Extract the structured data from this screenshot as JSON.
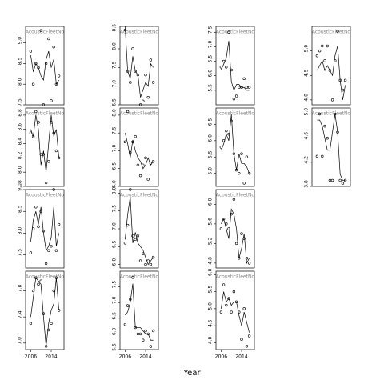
{
  "shared_x": {
    "label": "Year",
    "xlim": [
      2004,
      2019
    ],
    "xticks": [
      2006,
      2014
    ],
    "x": [
      2006,
      2007,
      2008,
      2009,
      2010,
      2011,
      2012,
      2013,
      2014,
      2015,
      2016,
      2017
    ]
  },
  "chart_data": [
    {
      "type": "line",
      "title": "AcousticFleetNo",
      "ylim": [
        7.5,
        9.4
      ],
      "yticks": [
        7.5,
        {
          "value": 8,
          "label": "8.0"
        },
        8.5,
        {
          "value": 9,
          "label": "9.0"
        }
      ],
      "series": [
        {
          "mark": "points",
          "values": [
            8.8,
            8.0,
            8.5,
            8.4,
            9.3,
            7.5,
            8.5,
            9.1,
            7.6,
            8.9,
            8.0,
            8.2
          ]
        },
        {
          "mark": "line",
          "values": [
            8.7,
            8.3,
            8.5,
            8.4,
            8.2,
            8.1,
            8.6,
            8.8,
            8.4,
            8.6,
            8.0,
            8.1
          ]
        }
      ]
    },
    {
      "type": "line",
      "title": "AcousticFleetNo",
      "ylim": [
        6.5,
        8.6
      ],
      "yticks": [
        6.5,
        {
          "value": 7,
          "label": "7.0"
        },
        7.5,
        {
          "value": 8,
          "label": "8.0"
        },
        8.5
      ],
      "series": [
        {
          "mark": "points",
          "values": [
            8.5,
            7.4,
            7.1,
            8.0,
            7.4,
            7.3,
            6.5,
            6.6,
            7.3,
            6.7,
            7.7,
            7.1
          ]
        },
        {
          "mark": "line",
          "values": [
            8.6,
            7.4,
            7.2,
            7.8,
            7.4,
            7.3,
            6.7,
            6.9,
            7.1,
            7.0,
            7.6,
            7.5
          ]
        }
      ]
    },
    {
      "type": "line",
      "title": "AcousticFleetNo",
      "ylim": [
        5.0,
        7.7
      ],
      "yticks": [
        5.5,
        {
          "value": 6,
          "label": "6.0"
        },
        6.5,
        {
          "value": 7,
          "label": "7.0"
        },
        7.5
      ],
      "series": [
        {
          "mark": "points",
          "values": [
            6.3,
            6.5,
            6.3,
            7.5,
            6.2,
            5.2,
            5.3,
            5.6,
            5.6,
            5.9,
            5.6,
            5.6
          ]
        },
        {
          "mark": "line",
          "values": [
            6.2,
            6.4,
            6.6,
            7.2,
            5.8,
            5.5,
            5.7,
            5.7,
            5.6,
            5.6,
            5.5,
            5.5
          ]
        }
      ]
    },
    {
      "type": "line",
      "title": "AcousticFleetNo",
      "ylim": [
        3.9,
        5.5
      ],
      "yticks": [
        {
          "value": 4,
          "label": "4.0"
        },
        4.5,
        {
          "value": 5,
          "label": "5.0"
        }
      ],
      "series": [
        {
          "mark": "points",
          "values": [
            4.9,
            5.0,
            5.1,
            4.8,
            5.1,
            4.6,
            4.0,
            4.8,
            5.4,
            4.4,
            4.2,
            4.4
          ]
        },
        {
          "mark": "line",
          "values": [
            4.6,
            4.7,
            4.8,
            4.6,
            4.7,
            4.6,
            4.5,
            4.9,
            5.1,
            4.4,
            4.0,
            4.3
          ]
        }
      ]
    },
    {
      "type": "line",
      "title": "AcousticFleetNo",
      "ylim": [
        7.8,
        8.9
      ],
      "yticks": [
        7.8,
        {
          "value": 8,
          "label": "8.0"
        },
        8.2,
        8.4,
        8.6,
        8.8
      ],
      "series": [
        {
          "mark": "points",
          "values": [
            8.55,
            8.5,
            8.85,
            8.7,
            8.25,
            8.25,
            7.85,
            8.15,
            8.7,
            8.55,
            8.3,
            8.2
          ]
        },
        {
          "mark": "line",
          "values": [
            8.6,
            8.5,
            8.8,
            8.6,
            8.1,
            8.3,
            8.0,
            8.4,
            8.8,
            8.5,
            8.6,
            8.2
          ]
        }
      ]
    },
    {
      "type": "line",
      "title": "AcousticFleetNo",
      "ylim": [
        6.0,
        8.2
      ],
      "yticks": [
        {
          "value": 6,
          "label": "6.0"
        },
        6.5,
        {
          "value": 7,
          "label": "7.0"
        },
        7.5,
        {
          "value": 8,
          "label": "8.0"
        }
      ],
      "series": [
        {
          "mark": "points",
          "values": [
            7.25,
            8.1,
            6.95,
            7.25,
            7.4,
            6.6,
            6.3,
            6.6,
            6.8,
            6.2,
            6.65,
            6.7
          ]
        },
        {
          "mark": "line",
          "values": [
            7.5,
            7.2,
            6.8,
            7.3,
            7.0,
            6.8,
            6.7,
            6.5,
            6.6,
            6.8,
            6.6,
            6.7
          ]
        }
      ]
    },
    {
      "type": "line",
      "title": "AcousticFleetNo",
      "ylim": [
        4.6,
        7.0
      ],
      "yticks": [
        {
          "value": 5,
          "label": "5.0"
        },
        5.5,
        {
          "value": 6,
          "label": "6.0"
        },
        6.5
      ],
      "series": [
        {
          "mark": "points",
          "values": [
            5.8,
            6.0,
            6.3,
            6.2,
            6.6,
            5.6,
            5.1,
            5.0,
            5.6,
            4.7,
            5.5,
            5.0
          ]
        },
        {
          "mark": "line",
          "values": [
            5.7,
            5.9,
            6.2,
            6.0,
            6.8,
            5.6,
            5.1,
            5.6,
            5.3,
            5.3,
            5.2,
            5.0
          ]
        }
      ]
    },
    {
      "type": "line",
      "title": "AcousticFleetNo",
      "ylim": [
        3.8,
        5.1
      ],
      "yticks": [
        3.8,
        4.2,
        4.6,
        {
          "value": 5,
          "label": "5.0"
        }
      ],
      "series": [
        {
          "mark": "points",
          "values": [
            4.3,
            5.0,
            4.3,
            4.8,
            4.6,
            3.9,
            3.9,
            5.0,
            4.7,
            3.9,
            3.85,
            3.9
          ]
        },
        {
          "mark": "line",
          "values": [
            4.9,
            4.9,
            4.8,
            4.6,
            4.4,
            4.4,
            4.7,
            5.0,
            4.7,
            4.0,
            3.9,
            3.9
          ]
        }
      ]
    },
    {
      "type": "line",
      "title": "AcousticFleetNo",
      "ylim": [
        7.2,
        9.0
      ],
      "yticks": [
        7.5,
        {
          "value": 8,
          "label": "8.0"
        },
        8.5,
        {
          "value": 9,
          "label": "9.0"
        }
      ],
      "series": [
        {
          "mark": "points",
          "values": [
            7.55,
            8.1,
            8.6,
            8.15,
            8.5,
            8.05,
            7.3,
            7.6,
            7.7,
            9.0,
            7.6,
            8.2
          ]
        },
        {
          "mark": "line",
          "values": [
            7.8,
            8.3,
            8.5,
            8.2,
            8.6,
            8.0,
            7.6,
            7.7,
            7.9,
            8.6,
            7.7,
            8.0
          ]
        }
      ]
    },
    {
      "type": "line",
      "title": "AcousticFleetNo",
      "ylim": [
        5.9,
        8.1
      ],
      "yticks": [
        {
          "value": 6,
          "label": "6.0"
        },
        6.5,
        {
          "value": 7,
          "label": "7.0"
        },
        7.5,
        {
          "value": 8,
          "label": "8.0"
        }
      ],
      "series": [
        {
          "mark": "points",
          "values": [
            6.6,
            7.1,
            8.1,
            6.8,
            6.7,
            6.8,
            6.1,
            6.3,
            6.0,
            6.1,
            6.0,
            6.2
          ]
        },
        {
          "mark": "line",
          "values": [
            6.7,
            7.4,
            7.9,
            6.6,
            6.9,
            6.6,
            6.5,
            6.4,
            6.2,
            6.0,
            6.1,
            6.2
          ]
        }
      ]
    },
    {
      "type": "line",
      "title": "AcousticFleetNo",
      "ylim": [
        4.7,
        6.3
      ],
      "yticks": [
        4.8,
        5.2,
        5.6,
        {
          "value": 6,
          "label": "6.0"
        }
      ],
      "series": [
        {
          "mark": "points",
          "values": [
            5.5,
            5.7,
            5.6,
            5.5,
            5.8,
            6.1,
            5.2,
            4.9,
            5.4,
            5.3,
            4.9,
            4.8
          ]
        },
        {
          "mark": "line",
          "values": [
            5.6,
            5.7,
            5.5,
            5.3,
            5.9,
            5.8,
            5.5,
            4.9,
            5.1,
            5.4,
            4.8,
            4.9
          ]
        }
      ]
    },
    {
      "type": "line",
      "title": "AcousticFleetNo",
      "ylim": [
        6.9,
        8.1
      ],
      "yticks": [
        {
          "value": 7,
          "label": "7.0"
        },
        7.4,
        7.8
      ],
      "series": [
        {
          "mark": "points",
          "values": [
            7.3,
            7.8,
            8.0,
            7.9,
            7.95,
            7.45,
            6.95,
            7.2,
            7.3,
            7.8,
            8.0,
            7.5
          ]
        },
        {
          "mark": "line",
          "values": [
            7.4,
            7.7,
            8.0,
            7.95,
            7.9,
            7.4,
            6.95,
            7.3,
            7.5,
            7.6,
            8.0,
            7.5
          ]
        }
      ]
    },
    {
      "type": "line",
      "title": "AcousticFleetNo",
      "ylim": [
        5.5,
        8.0
      ],
      "yticks": [
        5.5,
        {
          "value": 6,
          "label": "6.0"
        },
        6.5,
        {
          "value": 7,
          "label": "7.0"
        },
        7.5
      ],
      "series": [
        {
          "mark": "points",
          "values": [
            6.3,
            6.9,
            7.1,
            7.8,
            6.2,
            6.0,
            6.0,
            5.8,
            6.1,
            6.0,
            5.6,
            6.1
          ]
        },
        {
          "mark": "line",
          "values": [
            6.6,
            6.7,
            7.0,
            7.6,
            6.2,
            6.2,
            6.2,
            6.1,
            6.0,
            6.0,
            5.8,
            5.8
          ]
        }
      ]
    },
    {
      "type": "line",
      "title": "AcousticFleetNo",
      "ylim": [
        3.8,
        6.1
      ],
      "yticks": [
        {
          "value": 4,
          "label": "4.0"
        },
        4.5,
        {
          "value": 5,
          "label": "5.0"
        },
        5.5,
        {
          "value": 6,
          "label": "6.0"
        }
      ],
      "series": [
        {
          "mark": "points",
          "values": [
            4.9,
            5.7,
            5.1,
            5.3,
            4.9,
            5.5,
            5.2,
            4.9,
            4.1,
            5.0,
            3.9,
            4.2
          ]
        },
        {
          "mark": "line",
          "values": [
            5.0,
            5.5,
            5.2,
            5.3,
            5.1,
            5.2,
            5.2,
            4.8,
            4.5,
            4.9,
            4.6,
            4.3
          ]
        }
      ]
    }
  ]
}
